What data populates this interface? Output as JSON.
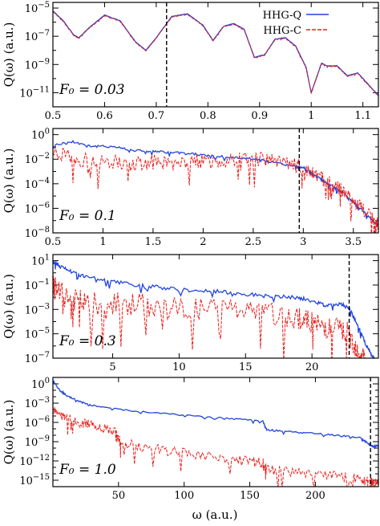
{
  "colors": {
    "quantum": "#2244dd",
    "classical": "#e8201c",
    "axis": "#000000",
    "cutoff": "#000000"
  },
  "legend": {
    "entries": [
      {
        "label": "HHG-Q",
        "style": "solid",
        "color": "#2244dd"
      },
      {
        "label": "HHG-C",
        "style": "dashed",
        "color": "#e8201c"
      }
    ]
  },
  "x_axis_label": "ω (a.u.)",
  "y_axis_label": "Q(ω) (a.u.)",
  "chart_data": [
    {
      "type": "line",
      "panel_label": "F₀ = 0.03",
      "xlim": [
        0.5,
        1.13
      ],
      "ylog": true,
      "ylim_exp": [
        -12,
        -4.6
      ],
      "xticks": [
        0.5,
        0.6,
        0.7,
        0.8,
        0.9,
        1.0,
        1.1
      ],
      "xtick_labels": [
        "0.5",
        "0.6",
        "0.7",
        "0.8",
        "0.9",
        "1",
        "1.1"
      ],
      "yticks_exp": [
        -11,
        -9,
        -7,
        -5
      ],
      "ytick_labels": [
        [
          "10",
          "−11"
        ],
        [
          "10",
          "−9"
        ],
        [
          "10",
          "−7"
        ],
        [
          "10",
          "−5"
        ]
      ],
      "cutoff": 0.72,
      "legend": true,
      "series": [
        {
          "name": "HHG-Q",
          "key": "quantum",
          "x": [
            0.5,
            0.52,
            0.54,
            0.55,
            0.57,
            0.6,
            0.63,
            0.66,
            0.68,
            0.7,
            0.73,
            0.76,
            0.79,
            0.81,
            0.83,
            0.85,
            0.87,
            0.89,
            0.91,
            0.93,
            0.95,
            0.97,
            0.99,
            1.0,
            1.02,
            1.03,
            1.05,
            1.07,
            1.09,
            1.11,
            1.13
          ],
          "y_exp": [
            -5.2,
            -5.9,
            -6.9,
            -7.1,
            -6.4,
            -5.5,
            -5.9,
            -7.4,
            -8.0,
            -7.1,
            -5.6,
            -5.4,
            -6.2,
            -7.3,
            -6.3,
            -6.1,
            -6.5,
            -8.5,
            -8.3,
            -7.2,
            -7.1,
            -7.7,
            -9.2,
            -11.0,
            -8.9,
            -9.1,
            -9.1,
            -9.8,
            -9.6,
            -10.4,
            -11.2
          ]
        },
        {
          "name": "HHG-C",
          "key": "classical",
          "x": [
            0.5,
            0.52,
            0.54,
            0.55,
            0.57,
            0.6,
            0.63,
            0.66,
            0.68,
            0.7,
            0.73,
            0.76,
            0.79,
            0.81,
            0.83,
            0.85,
            0.87,
            0.89,
            0.91,
            0.93,
            0.95,
            0.97,
            0.99,
            1.0,
            1.02,
            1.03,
            1.05,
            1.07,
            1.09,
            1.11,
            1.13
          ],
          "y_exp": [
            -5.25,
            -5.95,
            -6.95,
            -7.15,
            -6.45,
            -5.55,
            -5.95,
            -7.45,
            -8.05,
            -7.15,
            -5.65,
            -5.45,
            -6.25,
            -7.35,
            -6.35,
            -6.15,
            -6.55,
            -8.55,
            -8.35,
            -7.25,
            -7.15,
            -7.75,
            -9.25,
            -11.05,
            -8.95,
            -9.15,
            -9.15,
            -9.85,
            -9.65,
            -10.45,
            -11.25
          ]
        }
      ]
    },
    {
      "type": "line",
      "panel_label": "F₀ = 0.1",
      "xlim": [
        0.5,
        3.75
      ],
      "ylog": true,
      "ylim_exp": [
        -8,
        0.5
      ],
      "xticks": [
        0.5,
        1,
        1.5,
        2,
        2.5,
        3,
        3.5
      ],
      "xtick_labels": [
        "0.5",
        "1",
        "1.5",
        "2",
        "2.5",
        "3",
        "3.5"
      ],
      "yticks_exp": [
        -8,
        -6,
        -4,
        -2,
        0
      ],
      "ytick_labels": [
        [
          "10",
          "−8"
        ],
        [
          "10",
          "−6"
        ],
        [
          "10",
          "−4"
        ],
        [
          "10",
          "−2"
        ],
        [
          "10",
          "0"
        ]
      ],
      "cutoff": 2.96,
      "series": [
        {
          "name": "HHG-Q",
          "key": "quantum",
          "x": [
            0.5,
            0.7,
            0.9,
            1.1,
            1.3,
            1.5,
            1.7,
            1.9,
            2.1,
            2.3,
            2.5,
            2.7,
            2.9,
            3.0,
            3.1,
            3.2,
            3.3,
            3.4,
            3.5,
            3.6,
            3.7,
            3.75
          ],
          "y_exp": [
            -0.9,
            -0.6,
            -1.0,
            -1.0,
            -1.3,
            -1.4,
            -1.5,
            -1.6,
            -1.8,
            -1.9,
            -2.0,
            -2.3,
            -2.6,
            -2.7,
            -3.3,
            -3.8,
            -4.3,
            -4.8,
            -5.5,
            -6.3,
            -7.1,
            -7.5
          ]
        },
        {
          "name": "HHG-C",
          "key": "classical",
          "x": [
            0.5,
            0.7,
            0.9,
            1.1,
            1.3,
            1.5,
            1.7,
            1.9,
            2.1,
            2.3,
            2.5,
            2.7,
            2.9,
            3.0,
            3.1,
            3.2,
            3.3,
            3.4,
            3.5,
            3.6,
            3.7,
            3.75
          ],
          "y_exp": [
            -1.6,
            -2.2,
            -2.4,
            -2.5,
            -2.6,
            -2.5,
            -2.6,
            -2.4,
            -2.4,
            -2.2,
            -2.2,
            -2.4,
            -2.7,
            -2.8,
            -3.4,
            -3.9,
            -4.4,
            -4.9,
            -5.6,
            -6.4,
            -7.2,
            -7.6
          ]
        }
      ]
    },
    {
      "type": "line",
      "panel_label": "F₀ = 0.3",
      "xlim": [
        0.5,
        25
      ],
      "ylog": true,
      "ylim_exp": [
        -7,
        1.5
      ],
      "xticks": [
        5,
        10,
        15,
        20
      ],
      "xtick_labels": [
        "5",
        "10",
        "15",
        "20"
      ],
      "yticks_exp": [
        -7,
        -5,
        -3,
        -1,
        1
      ],
      "ytick_labels": [
        [
          "10",
          "−7"
        ],
        [
          "10",
          "−5"
        ],
        [
          "10",
          "−3"
        ],
        [
          "10",
          "−1"
        ],
        [
          "10",
          "1"
        ]
      ],
      "cutoff": 22.8,
      "series": [
        {
          "name": "HHG-Q",
          "key": "quantum",
          "x": [
            0.5,
            1,
            2,
            3,
            5,
            7,
            9,
            11,
            13,
            15,
            17,
            19,
            20,
            21,
            22,
            22.8,
            23.5,
            24,
            24.5,
            25
          ],
          "y_exp": [
            1.0,
            0.5,
            0.0,
            -0.4,
            -0.8,
            -1.1,
            -1.3,
            -1.5,
            -1.6,
            -1.8,
            -2.0,
            -2.1,
            -2.4,
            -2.7,
            -2.6,
            -2.9,
            -4.5,
            -5.8,
            -6.8,
            -7.5
          ]
        },
        {
          "name": "HHG-C",
          "key": "classical",
          "x": [
            0.5,
            1,
            2,
            3,
            5,
            7,
            9,
            11,
            13,
            15,
            17,
            19,
            20,
            21,
            22,
            22.8,
            23.5,
            24
          ],
          "y_exp": [
            -1.5,
            -2.1,
            -2.5,
            -2.9,
            -3.0,
            -3.0,
            -3.3,
            -3.4,
            -3.4,
            -3.6,
            -3.8,
            -4.0,
            -4.6,
            -4.8,
            -4.9,
            -5.5,
            -6.8,
            -7.4
          ]
        }
      ]
    },
    {
      "type": "line",
      "panel_label": "F₀ = 1.0",
      "xlim": [
        0,
        248
      ],
      "ylog": true,
      "ylim_exp": [
        -16,
        1
      ],
      "xticks": [
        50,
        100,
        150,
        200
      ],
      "xtick_labels": [
        "50",
        "100",
        "150",
        "200"
      ],
      "yticks_exp": [
        -15,
        -12,
        -9,
        -6,
        -3,
        0
      ],
      "ytick_labels": [
        [
          "10",
          "−15"
        ],
        [
          "10",
          "−12"
        ],
        [
          "10",
          "−9"
        ],
        [
          "10",
          "−6"
        ],
        [
          "10",
          "−3"
        ],
        [
          "10",
          "0"
        ]
      ],
      "cutoff": 242,
      "series": [
        {
          "name": "HHG-Q",
          "key": "quantum",
          "x": [
            0,
            5,
            10,
            20,
            30,
            50,
            80,
            110,
            140,
            160,
            163,
            180,
            200,
            220,
            235,
            241,
            244,
            248
          ],
          "y_exp": [
            0.5,
            -1.0,
            -1.8,
            -2.8,
            -3.4,
            -4.0,
            -4.6,
            -5.1,
            -5.5,
            -5.9,
            -7.2,
            -7.5,
            -7.8,
            -8.1,
            -8.5,
            -9.5,
            -9.8,
            -9.6
          ]
        },
        {
          "name": "HHG-C",
          "key": "classical",
          "x": [
            0,
            5,
            10,
            20,
            30,
            40,
            48,
            52,
            70,
            90,
            110,
            130,
            150,
            160,
            163,
            180,
            200,
            220,
            235,
            241,
            244,
            248
          ],
          "y_exp": [
            -4.5,
            -5.0,
            -5.6,
            -6.3,
            -6.8,
            -7.3,
            -8.0,
            -9.5,
            -10.2,
            -10.8,
            -11.4,
            -11.9,
            -12.4,
            -12.6,
            -13.5,
            -14.0,
            -14.4,
            -14.8,
            -15.2,
            -15.6,
            -15.8,
            -15.8
          ]
        }
      ]
    }
  ]
}
